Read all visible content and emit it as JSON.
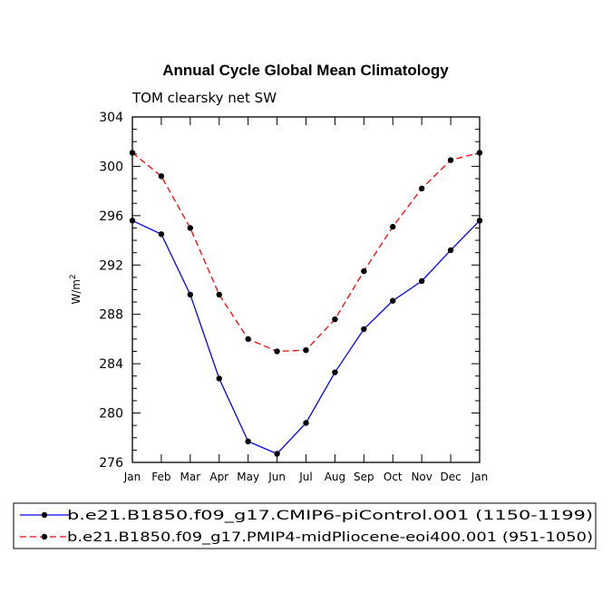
{
  "chart_data": {
    "type": "line",
    "title": "Annual Cycle Global Mean Climatology",
    "subtitle": "TOM clearsky net SW",
    "ylabel": "W/m",
    "ylabel_superscript": "2",
    "xlabel": "",
    "categories": [
      "Jan",
      "Feb",
      "Mar",
      "Apr",
      "May",
      "Jun",
      "Jul",
      "Aug",
      "Sep",
      "Oct",
      "Nov",
      "Dec",
      "Jan"
    ],
    "ylim": [
      276,
      304
    ],
    "yticks": [
      276,
      280,
      284,
      288,
      292,
      296,
      300,
      304
    ],
    "grid": false,
    "legend_position": "bottom",
    "series": [
      {
        "name": "b.e21.B1850.f09_g17.CMIP6-piControl.001 (1150-1199)",
        "color": "#0000ff",
        "dash": "solid",
        "values": [
          295.6,
          294.5,
          289.6,
          282.8,
          277.7,
          276.7,
          279.2,
          283.3,
          286.8,
          289.1,
          290.7,
          293.2,
          295.6
        ]
      },
      {
        "name": "b.e21.B1850.f09_g17.PMIP4-midPliocene-eoi400.001 (951-1050)",
        "color": "#ff0000",
        "dash": "dashed",
        "values": [
          301.1,
          299.2,
          295.0,
          289.6,
          286.0,
          285.0,
          285.1,
          287.6,
          291.5,
          295.1,
          298.2,
          300.5,
          301.1
        ]
      }
    ]
  }
}
